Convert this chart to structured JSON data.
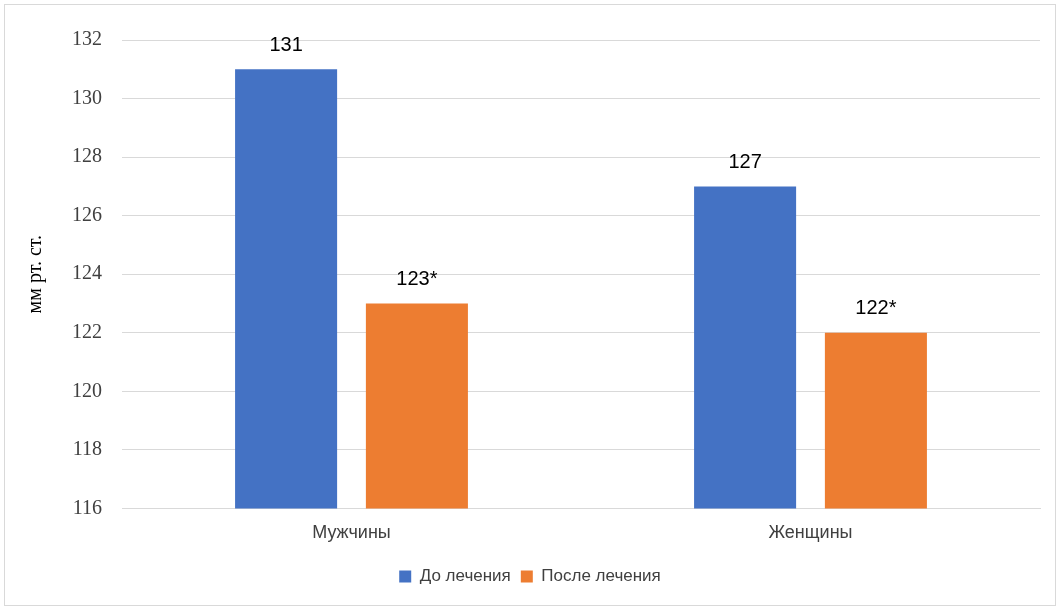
{
  "chart_data": {
    "type": "bar",
    "ylabel": "мм рт. ст.",
    "categories": [
      "Мужчины",
      "Женщины"
    ],
    "series": [
      {
        "name": "До лечения",
        "color": "#4472c4",
        "values": [
          131,
          127
        ],
        "value_labels": [
          "131",
          "127"
        ]
      },
      {
        "name": "После лечения",
        "color": "#ed7d31",
        "values": [
          123,
          122
        ],
        "value_labels": [
          "123*",
          "122*"
        ]
      }
    ],
    "ylim": [
      116,
      132
    ],
    "yticks": [
      116,
      118,
      120,
      122,
      124,
      126,
      128,
      130,
      132
    ],
    "grid": "y",
    "legend": "bottom"
  }
}
